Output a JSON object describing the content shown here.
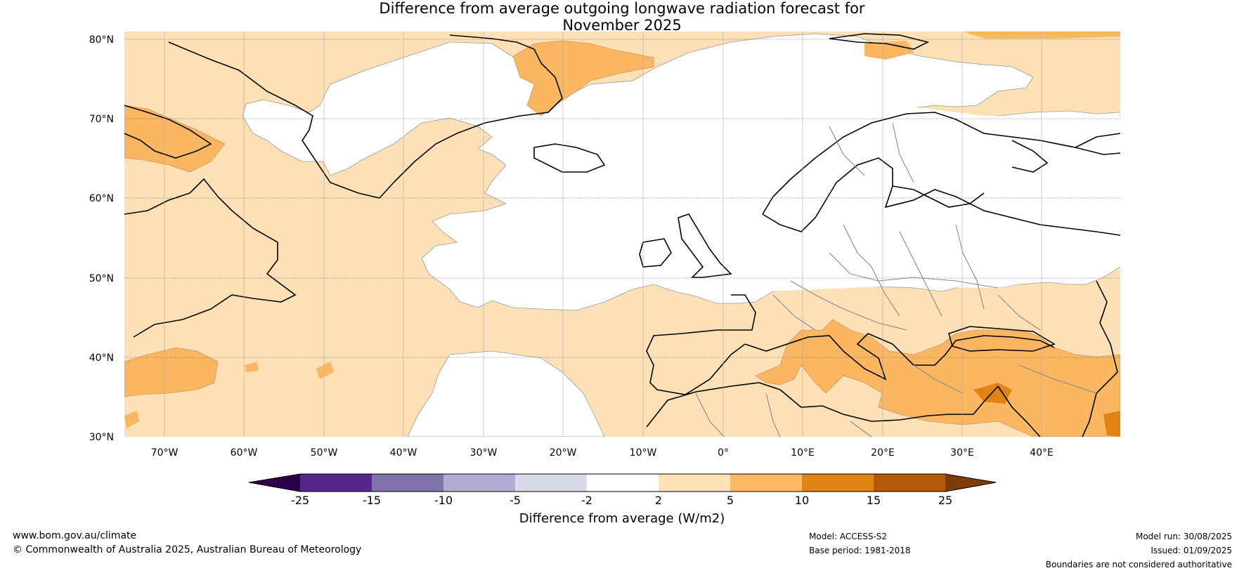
{
  "title": {
    "line1": "Difference from average outgoing longwave radiation forecast for",
    "line2": "November 2025"
  },
  "map": {
    "lat_labels": [
      "80°N",
      "70°N",
      "60°N",
      "50°N",
      "40°N",
      "30°N"
    ],
    "lon_labels": [
      "70°W",
      "60°W",
      "50°W",
      "40°W",
      "30°W",
      "20°W",
      "10°W",
      "0°",
      "10°E",
      "20°E",
      "30°E",
      "40°E"
    ],
    "colors": {
      "ocean_land_neutral": "#ffffff",
      "pale_orange": "#fde0b6",
      "orange": "#fbb662",
      "dark_orange": "#e08214",
      "coast": "#000000",
      "border": "#808080",
      "grid": "#555555"
    }
  },
  "colorbar": {
    "title": "Difference from average (W/m2)",
    "ticks": [
      "-25",
      "-15",
      "-10",
      "-5",
      "-2",
      "2",
      "5",
      "10",
      "15",
      "25"
    ],
    "colors": [
      "#2d004b",
      "#542788",
      "#8073ac",
      "#b2abd2",
      "#d8daeb",
      "#ffffff",
      "#fee0b6",
      "#fdb863",
      "#e08214",
      "#b35806",
      "#7f3b08"
    ]
  },
  "footer": {
    "url": "www.bom.gov.au/climate",
    "copyright": "© Commonwealth of Australia 2025, Australian Bureau of Meteorology",
    "model": "Model: ACCESS-S2",
    "base_period": "Base period: 1981-2018",
    "model_run": "Model run: 30/08/2025",
    "issued": "Issued: 01/09/2025",
    "disclaimer": "Boundaries are not considered authoritative"
  }
}
